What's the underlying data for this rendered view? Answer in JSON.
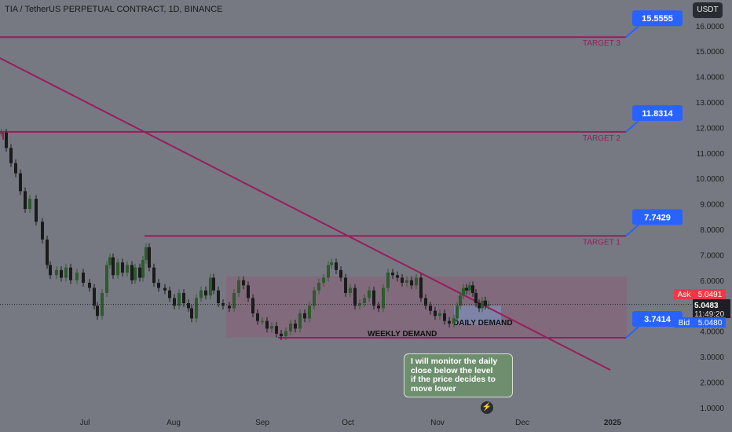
{
  "header": {
    "title": "TIA / TetherUS PERPETUAL CONTRACT, 1D, BINANCE",
    "unit_button": "USDT"
  },
  "chart_data": {
    "type": "candlestick",
    "y_ticks": [
      "1.0000",
      "2.0000",
      "3.0000",
      "4.0000",
      "5.0000",
      "6.0000",
      "7.0000",
      "8.0000",
      "9.0000",
      "10.0000",
      "11.0000",
      "12.0000",
      "13.0000",
      "14.0000",
      "15.0000",
      "16.0000"
    ],
    "x_ticks": [
      "Jul",
      "Aug",
      "Sep",
      "Oct",
      "Nov",
      "Dec",
      "2025"
    ],
    "price_levels": [
      {
        "label": "TARGET 3",
        "value": 15.5555,
        "callout": "15.5555"
      },
      {
        "label": "TARGET 2",
        "value": 11.8314,
        "callout": "11.8314"
      },
      {
        "label": "TARGET 1",
        "value": 7.7429,
        "callout": "7.7429"
      },
      {
        "label": "",
        "value": 3.7414,
        "callout": "3.7414"
      }
    ],
    "zones": [
      {
        "label": "WEEKLY DEMAND",
        "from": 3.75,
        "to": 6.15
      },
      {
        "label": "DAILY DEMAND",
        "from": 4.25,
        "to": 5.0
      }
    ],
    "quote": {
      "ask_label": "Ask",
      "ask": "5.0491",
      "last": "5.0483",
      "countdown": "11:49:20",
      "bid_label": "Bid",
      "bid": "5.0480"
    },
    "colors": {
      "up": "#2e5a2e",
      "down": "#1b1b1b",
      "level": "#9a1c5b",
      "callout": "#2962ff",
      "ask": "#f23645",
      "weekly_zone": "#8a5e78",
      "daily_zone": "#7d8db5"
    },
    "note": [
      "I will monitor the daily",
      "close below the level",
      "if the price decides to",
      "move lower"
    ]
  },
  "footer": {
    "logo_icon": "tradingview-flash-icon"
  }
}
